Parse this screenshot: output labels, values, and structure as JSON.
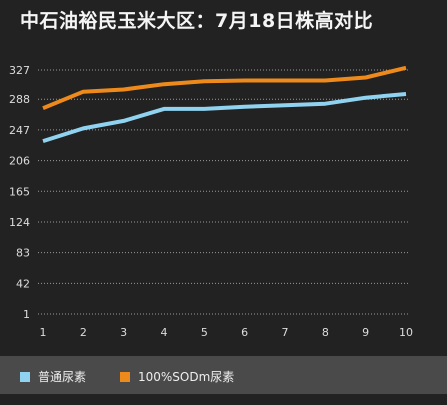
{
  "title": "中石油裕民玉米大区：7月18日株高对比",
  "colors": {
    "background": "#222222",
    "grid": "#9a9a9a",
    "axis_text": "#dddddd",
    "legend_bg": "#4a4a4a"
  },
  "chart_data": {
    "type": "line",
    "title": "中石油裕民玉米大区：7月18日株高对比",
    "x": [
      1,
      2,
      3,
      4,
      5,
      6,
      7,
      8,
      9,
      10
    ],
    "x_ticks": [
      "1",
      "2",
      "3",
      "4",
      "5",
      "6",
      "7",
      "8",
      "9",
      "10"
    ],
    "y_ticks": [
      "1",
      "42",
      "83",
      "124",
      "165",
      "206",
      "247",
      "288",
      "327"
    ],
    "ylim": [
      1,
      327
    ],
    "grid": "horizontal dotted",
    "legend_position": "bottom",
    "series": [
      {
        "name": "普通尿素",
        "color": "#8fd3f0",
        "values": [
          232,
          249,
          259,
          275,
          275,
          278,
          280,
          282,
          290,
          295
        ]
      },
      {
        "name": "100%SODm尿素",
        "color": "#ee8a1c",
        "values": [
          276,
          298,
          301,
          308,
          312,
          313,
          313,
          313,
          317,
          330
        ]
      }
    ]
  }
}
